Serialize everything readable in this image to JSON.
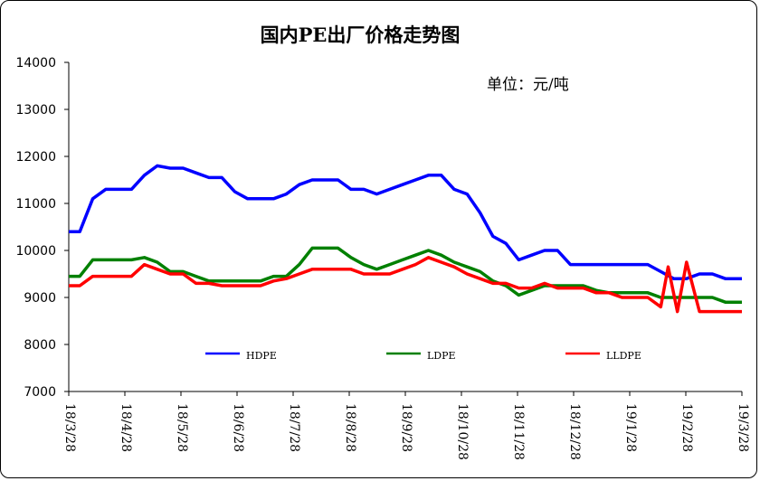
{
  "chart_data": {
    "type": "line",
    "title": "国内PE出厂价格走势图",
    "unit_note": "单位：元/吨",
    "ylim": [
      7000,
      14000
    ],
    "y_ticks": [
      "7000",
      "8000",
      "9000",
      "10000",
      "11000",
      "12000",
      "13000",
      "14000"
    ],
    "x_tick_labels": [
      "18/3/28",
      "18/4/28",
      "18/5/28",
      "18/6/28",
      "18/7/28",
      "18/8/28",
      "18/9/28",
      "18/10/28",
      "18/11/28",
      "18/12/28",
      "19/1/28",
      "19/2/28",
      "19/3/28"
    ],
    "x_start": "2018-03-28",
    "grid": false,
    "legend_position": "bottom",
    "series": [
      {
        "name": "HDPE",
        "color": "#0000ff",
        "points": [
          [
            "2018-03-28",
            10400
          ],
          [
            "2018-04-03",
            10400
          ],
          [
            "2018-04-10",
            11100
          ],
          [
            "2018-04-17",
            11300
          ],
          [
            "2018-04-24",
            11300
          ],
          [
            "2018-05-01",
            11300
          ],
          [
            "2018-05-08",
            11600
          ],
          [
            "2018-05-15",
            11800
          ],
          [
            "2018-05-22",
            11750
          ],
          [
            "2018-05-29",
            11750
          ],
          [
            "2018-06-05",
            11650
          ],
          [
            "2018-06-12",
            11550
          ],
          [
            "2018-06-19",
            11550
          ],
          [
            "2018-06-26",
            11250
          ],
          [
            "2018-07-03",
            11100
          ],
          [
            "2018-07-10",
            11100
          ],
          [
            "2018-07-17",
            11100
          ],
          [
            "2018-07-24",
            11200
          ],
          [
            "2018-07-31",
            11400
          ],
          [
            "2018-08-07",
            11500
          ],
          [
            "2018-08-14",
            11500
          ],
          [
            "2018-08-21",
            11500
          ],
          [
            "2018-08-28",
            11300
          ],
          [
            "2018-09-04",
            11300
          ],
          [
            "2018-09-11",
            11200
          ],
          [
            "2018-09-18",
            11300
          ],
          [
            "2018-09-25",
            11400
          ],
          [
            "2018-10-02",
            11500
          ],
          [
            "2018-10-09",
            11600
          ],
          [
            "2018-10-16",
            11600
          ],
          [
            "2018-10-23",
            11300
          ],
          [
            "2018-10-30",
            11200
          ],
          [
            "2018-11-06",
            10800
          ],
          [
            "2018-11-13",
            10300
          ],
          [
            "2018-11-20",
            10150
          ],
          [
            "2018-11-27",
            9800
          ],
          [
            "2018-12-04",
            9900
          ],
          [
            "2018-12-11",
            10000
          ],
          [
            "2018-12-18",
            10000
          ],
          [
            "2018-12-25",
            9700
          ],
          [
            "2019-01-01",
            9700
          ],
          [
            "2019-01-08",
            9700
          ],
          [
            "2019-01-15",
            9700
          ],
          [
            "2019-01-22",
            9700
          ],
          [
            "2019-01-29",
            9700
          ],
          [
            "2019-02-05",
            9700
          ],
          [
            "2019-02-12",
            9550
          ],
          [
            "2019-02-19",
            9400
          ],
          [
            "2019-02-26",
            9400
          ],
          [
            "2019-03-05",
            9500
          ],
          [
            "2019-03-12",
            9500
          ],
          [
            "2019-03-19",
            9400
          ],
          [
            "2019-03-28",
            9400
          ]
        ]
      },
      {
        "name": "LDPE",
        "color": "#008000",
        "points": [
          [
            "2018-03-28",
            9450
          ],
          [
            "2018-04-03",
            9450
          ],
          [
            "2018-04-10",
            9800
          ],
          [
            "2018-04-17",
            9800
          ],
          [
            "2018-04-24",
            9800
          ],
          [
            "2018-05-01",
            9800
          ],
          [
            "2018-05-08",
            9850
          ],
          [
            "2018-05-15",
            9750
          ],
          [
            "2018-05-22",
            9550
          ],
          [
            "2018-05-29",
            9550
          ],
          [
            "2018-06-05",
            9450
          ],
          [
            "2018-06-12",
            9350
          ],
          [
            "2018-06-19",
            9350
          ],
          [
            "2018-06-26",
            9350
          ],
          [
            "2018-07-03",
            9350
          ],
          [
            "2018-07-10",
            9350
          ],
          [
            "2018-07-17",
            9450
          ],
          [
            "2018-07-24",
            9450
          ],
          [
            "2018-07-31",
            9700
          ],
          [
            "2018-08-07",
            10050
          ],
          [
            "2018-08-14",
            10050
          ],
          [
            "2018-08-21",
            10050
          ],
          [
            "2018-08-28",
            9850
          ],
          [
            "2018-09-04",
            9700
          ],
          [
            "2018-09-11",
            9600
          ],
          [
            "2018-09-18",
            9700
          ],
          [
            "2018-09-25",
            9800
          ],
          [
            "2018-10-02",
            9900
          ],
          [
            "2018-10-09",
            10000
          ],
          [
            "2018-10-16",
            9900
          ],
          [
            "2018-10-23",
            9750
          ],
          [
            "2018-10-30",
            9650
          ],
          [
            "2018-11-06",
            9550
          ],
          [
            "2018-11-13",
            9350
          ],
          [
            "2018-11-20",
            9250
          ],
          [
            "2018-11-27",
            9050
          ],
          [
            "2018-12-04",
            9150
          ],
          [
            "2018-12-11",
            9250
          ],
          [
            "2018-12-18",
            9250
          ],
          [
            "2018-12-25",
            9250
          ],
          [
            "2019-01-01",
            9250
          ],
          [
            "2019-01-08",
            9150
          ],
          [
            "2019-01-15",
            9100
          ],
          [
            "2019-01-22",
            9100
          ],
          [
            "2019-01-29",
            9100
          ],
          [
            "2019-02-05",
            9100
          ],
          [
            "2019-02-12",
            9000
          ],
          [
            "2019-02-19",
            9000
          ],
          [
            "2019-02-26",
            9000
          ],
          [
            "2019-03-05",
            9000
          ],
          [
            "2019-03-12",
            9000
          ],
          [
            "2019-03-19",
            8900
          ],
          [
            "2019-03-28",
            8900
          ]
        ]
      },
      {
        "name": "LLDPE",
        "color": "#ff0000",
        "points": [
          [
            "2018-03-28",
            9250
          ],
          [
            "2018-04-03",
            9250
          ],
          [
            "2018-04-10",
            9450
          ],
          [
            "2018-04-17",
            9450
          ],
          [
            "2018-04-24",
            9450
          ],
          [
            "2018-05-01",
            9450
          ],
          [
            "2018-05-08",
            9700
          ],
          [
            "2018-05-15",
            9600
          ],
          [
            "2018-05-22",
            9500
          ],
          [
            "2018-05-29",
            9500
          ],
          [
            "2018-06-05",
            9300
          ],
          [
            "2018-06-12",
            9300
          ],
          [
            "2018-06-19",
            9250
          ],
          [
            "2018-06-26",
            9250
          ],
          [
            "2018-07-03",
            9250
          ],
          [
            "2018-07-10",
            9250
          ],
          [
            "2018-07-17",
            9350
          ],
          [
            "2018-07-24",
            9400
          ],
          [
            "2018-07-31",
            9500
          ],
          [
            "2018-08-07",
            9600
          ],
          [
            "2018-08-14",
            9600
          ],
          [
            "2018-08-21",
            9600
          ],
          [
            "2018-08-28",
            9600
          ],
          [
            "2018-09-04",
            9500
          ],
          [
            "2018-09-11",
            9500
          ],
          [
            "2018-09-18",
            9500
          ],
          [
            "2018-09-25",
            9600
          ],
          [
            "2018-10-02",
            9700
          ],
          [
            "2018-10-09",
            9850
          ],
          [
            "2018-10-16",
            9750
          ],
          [
            "2018-10-23",
            9650
          ],
          [
            "2018-10-30",
            9500
          ],
          [
            "2018-11-06",
            9400
          ],
          [
            "2018-11-13",
            9300
          ],
          [
            "2018-11-20",
            9300
          ],
          [
            "2018-11-27",
            9200
          ],
          [
            "2018-12-04",
            9200
          ],
          [
            "2018-12-11",
            9300
          ],
          [
            "2018-12-18",
            9200
          ],
          [
            "2018-12-25",
            9200
          ],
          [
            "2019-01-01",
            9200
          ],
          [
            "2019-01-08",
            9100
          ],
          [
            "2019-01-15",
            9100
          ],
          [
            "2019-01-22",
            9000
          ],
          [
            "2019-01-29",
            9000
          ],
          [
            "2019-02-05",
            9000
          ],
          [
            "2019-02-12",
            8800
          ],
          [
            "2019-02-16",
            9650
          ],
          [
            "2019-02-21",
            8700
          ],
          [
            "2019-02-26",
            9750
          ],
          [
            "2019-03-05",
            8700
          ],
          [
            "2019-03-12",
            8700
          ],
          [
            "2019-03-28",
            8700
          ]
        ]
      }
    ]
  }
}
